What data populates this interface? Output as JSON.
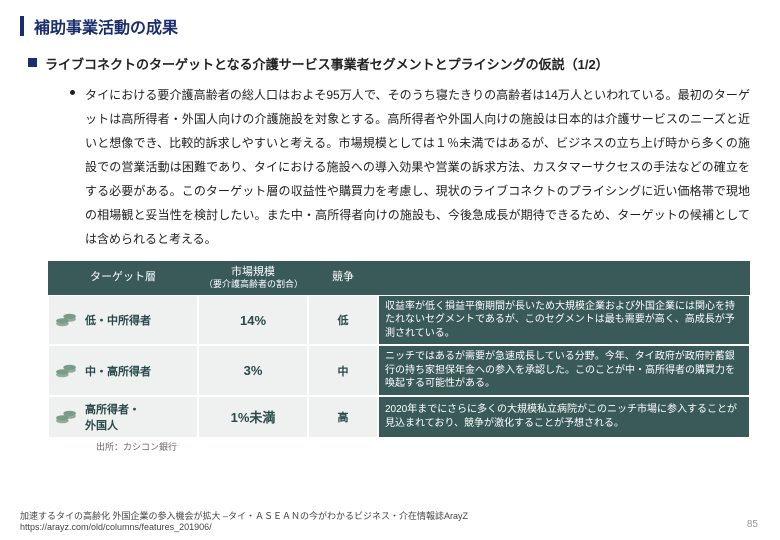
{
  "title": "補助事業活動の成果",
  "subtitle": "ライブコネクトのターゲットとなる介護サービス事業者セグメントとプライシングの仮説（1/2）",
  "body": "タイにおける要介護高齢者の総人口はおよそ95万人で、そのうち寝たきりの高齢者は14万人といわれている。最初のターゲットは高所得者・外国人向けの介護施設を対象とする。高所得者や外国人向けの施設は日本的は介護サービスのニーズと近いと想像でき、比較的訴求しやすいと考える。市場規模としては１％未満ではあるが、ビジネスの立ち上げ時から多くの施設での営業活動は困難であり、タイにおける施設への導入効果や営業の訴求方法、カスタマーサクセスの手法などの確立をする必要がある。このターゲット層の収益性や購買力を考慮し、現状のライブコネクトのプライシングに近い価格帯で現地の相場観と妥当性を検討したい。また中・高所得者向けの施設も、今後急成長が期待できるため、ターゲットの候補としては含められると考える。",
  "table": {
    "headers": {
      "c1": "ターゲット層",
      "c2": "市場規模",
      "c2sub": "（要介護高齢者の割合）",
      "c3": "競争"
    },
    "rows": [
      {
        "target": "低・中所得者",
        "size": "14%",
        "comp": "低",
        "desc": "収益率が低く損益平衡期間が長いため大規模企業および外国企業には関心を持たれないセグメントであるが、このセグメントは最も需要が高く、高成長が予測されている。"
      },
      {
        "target": "中・高所得者",
        "size": "3%",
        "comp": "中",
        "desc": "ニッチではあるが需要が急速成長している分野。今年、タイ政府が政府貯蓄銀行の持ち家担保年金への参入を承認した。このことが中・高所得者の購買力を喚起する可能性がある。"
      },
      {
        "target": "高所得者・\n外国人",
        "size": "1%未満",
        "comp": "高",
        "desc": "2020年までにさらに多くの大規模私立病院がこのニッチ市場に参入することが見込まれており、競争が激化することが予想される。"
      }
    ],
    "source": "出所：カシコン銀行"
  },
  "footer": {
    "line1": "加速するタイの高齢化 外国企業の参入機会が拡大 –タイ・ＡＳＥＡＮの今がわかるビジネス・介在情報誌ArayZ",
    "line2": "https://arayz.com/old/columns/features_201906/"
  },
  "pageNum": "85",
  "colors": {
    "accent": "#1a2e6e",
    "tableHeader": "#3a5a5a",
    "tableCell": "#eef1ef",
    "coin": "#7a9a8a"
  }
}
